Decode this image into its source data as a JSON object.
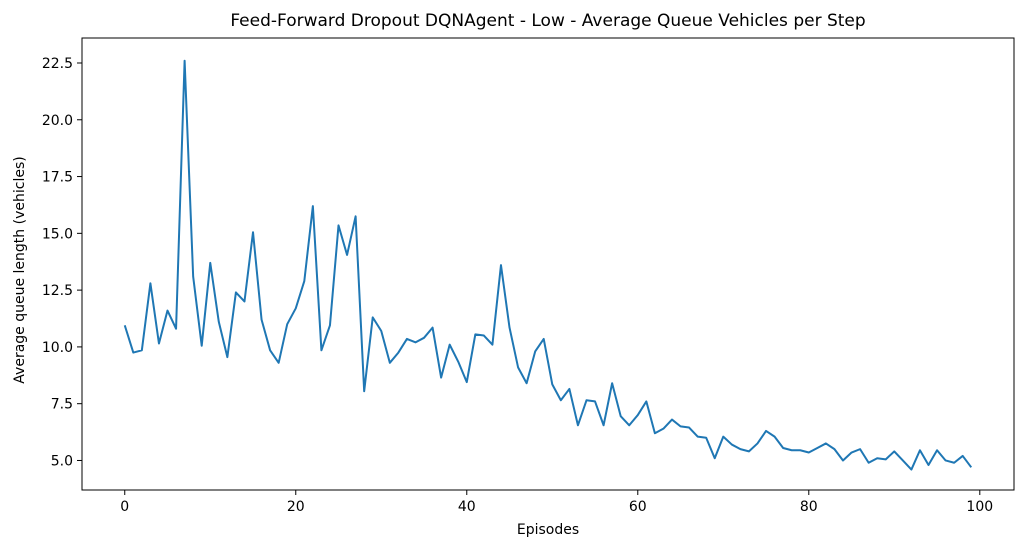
{
  "chart_data": {
    "type": "line",
    "title": "Feed-Forward Dropout DQNAgent - Low - Average Queue Vehicles per Step",
    "xlabel": "Episodes",
    "ylabel": "Average queue length (vehicles)",
    "xlim": [
      -5,
      104
    ],
    "ylim": [
      3.7,
      23.6
    ],
    "xticks": [
      0,
      20,
      40,
      60,
      80,
      100
    ],
    "xtick_labels": [
      "0",
      "20",
      "40",
      "60",
      "80",
      "100"
    ],
    "yticks": [
      5.0,
      7.5,
      10.0,
      12.5,
      15.0,
      17.5,
      20.0,
      22.5
    ],
    "ytick_labels": [
      "5.0",
      "7.5",
      "10.0",
      "12.5",
      "15.0",
      "17.5",
      "20.0",
      "22.5"
    ],
    "grid": false,
    "legend": "none",
    "series": [
      {
        "color": "#1f77b4",
        "x": [
          0,
          1,
          2,
          3,
          4,
          5,
          6,
          7,
          8,
          9,
          10,
          11,
          12,
          13,
          14,
          15,
          16,
          17,
          18,
          19,
          20,
          21,
          22,
          23,
          24,
          25,
          26,
          27,
          28,
          29,
          30,
          31,
          32,
          33,
          34,
          35,
          36,
          37,
          38,
          39,
          40,
          41,
          42,
          43,
          44,
          45,
          46,
          47,
          48,
          49,
          50,
          51,
          52,
          53,
          54,
          55,
          56,
          57,
          58,
          59,
          60,
          61,
          62,
          63,
          64,
          65,
          66,
          67,
          68,
          69,
          70,
          71,
          72,
          73,
          74,
          75,
          76,
          77,
          78,
          79,
          80,
          81,
          82,
          83,
          84,
          85,
          86,
          87,
          88,
          89,
          90,
          91,
          92,
          93,
          94,
          95,
          96,
          97,
          98,
          99
        ],
        "values": [
          10.95,
          9.75,
          9.85,
          12.8,
          10.15,
          11.6,
          10.8,
          22.6,
          13.1,
          10.05,
          13.7,
          11.1,
          9.55,
          12.4,
          12.0,
          15.05,
          11.2,
          9.85,
          9.3,
          11.0,
          11.7,
          12.9,
          16.2,
          9.85,
          10.95,
          15.35,
          14.05,
          15.75,
          8.05,
          11.3,
          10.7,
          9.3,
          9.75,
          10.35,
          10.2,
          10.4,
          10.85,
          8.65,
          10.1,
          9.35,
          8.45,
          10.55,
          10.5,
          10.1,
          13.6,
          10.85,
          9.1,
          8.4,
          9.8,
          10.35,
          8.35,
          7.65,
          8.15,
          6.55,
          7.65,
          7.6,
          6.55,
          8.4,
          6.95,
          6.55,
          7.0,
          7.6,
          6.2,
          6.4,
          6.8,
          6.5,
          6.45,
          6.05,
          6.0,
          5.1,
          6.05,
          5.7,
          5.5,
          5.4,
          5.75,
          6.3,
          6.05,
          5.55,
          5.45,
          5.45,
          5.35,
          5.55,
          5.75,
          5.5,
          5.0,
          5.35,
          5.5,
          4.9,
          5.1,
          5.05,
          5.4,
          5.0,
          4.6,
          5.45,
          4.8,
          5.45,
          5.0,
          4.9,
          5.2,
          4.7
        ]
      }
    ]
  }
}
